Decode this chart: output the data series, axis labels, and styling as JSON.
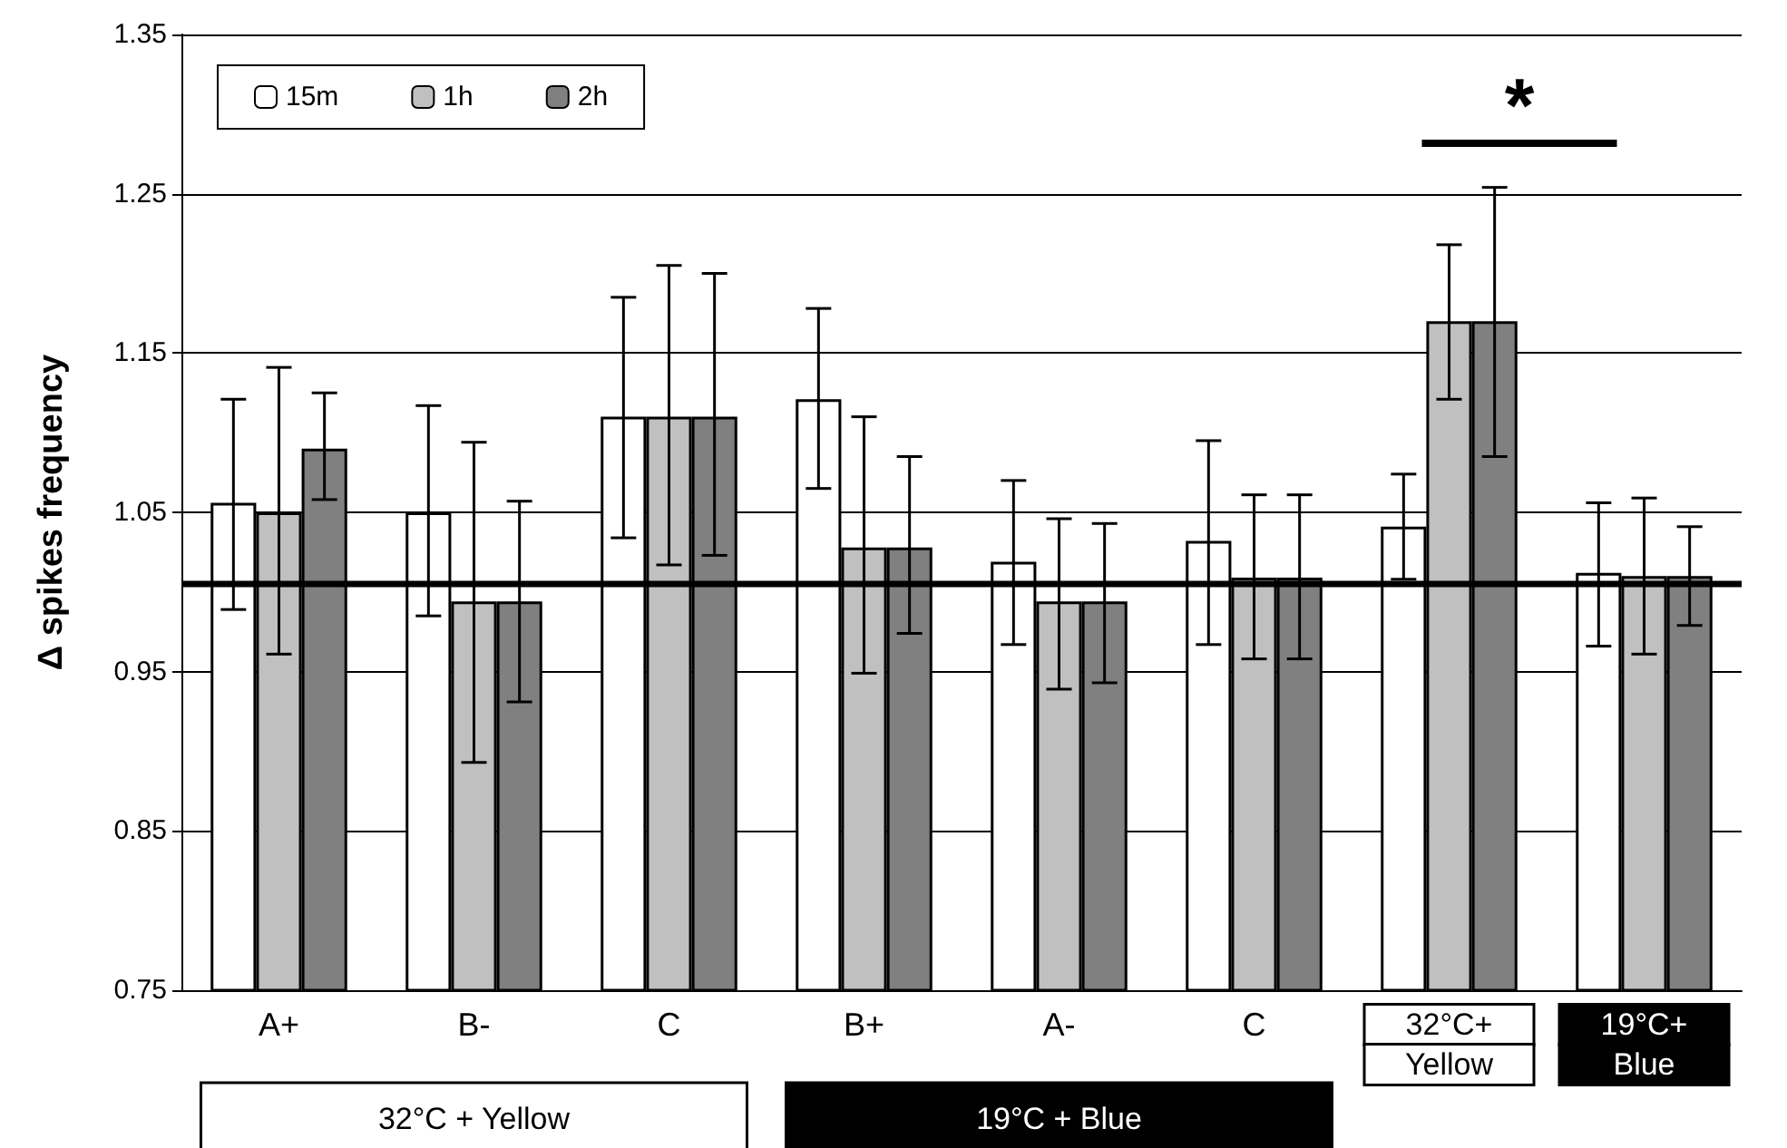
{
  "chart_data": {
    "type": "bar",
    "ylabel": "Δ spikes frequency",
    "categories": [
      "A+",
      "B-",
      "C",
      "B+",
      "A-",
      "C",
      "32°C+\nYellow",
      "19°C+\nBlue"
    ],
    "series": [
      {
        "name": "15m",
        "color": "#ffffff",
        "values": [
          1.056,
          1.05,
          1.11,
          1.121,
          1.019,
          1.032,
          1.041,
          1.012
        ],
        "errors": [
          [
            0.989,
            1.121
          ],
          [
            0.985,
            1.117
          ],
          [
            1.034,
            1.185
          ],
          [
            1.065,
            1.178
          ],
          [
            0.967,
            1.07
          ],
          [
            0.967,
            1.095
          ],
          [
            1.008,
            1.074
          ],
          [
            0.966,
            1.056
          ]
        ]
      },
      {
        "name": "1h",
        "color": "#c0c0c0",
        "values": [
          1.05,
          0.994,
          1.11,
          1.028,
          0.994,
          1.009,
          1.17,
          1.01
        ],
        "errors": [
          [
            0.961,
            1.141
          ],
          [
            0.893,
            1.094
          ],
          [
            1.017,
            1.205
          ],
          [
            0.949,
            1.11
          ],
          [
            0.939,
            1.046
          ],
          [
            0.958,
            1.061
          ],
          [
            1.121,
            1.218
          ],
          [
            0.961,
            1.059
          ]
        ]
      },
      {
        "name": "2h",
        "color": "#808080",
        "values": [
          1.09,
          0.994,
          1.11,
          1.028,
          0.994,
          1.009,
          1.17,
          1.01
        ],
        "errors": [
          [
            1.058,
            1.125
          ],
          [
            0.931,
            1.057
          ],
          [
            1.023,
            1.2
          ],
          [
            0.974,
            1.085
          ],
          [
            0.943,
            1.043
          ],
          [
            0.958,
            1.061
          ],
          [
            1.085,
            1.254
          ],
          [
            0.979,
            1.041
          ]
        ]
      }
    ],
    "ylim": [
      0.75,
      1.35
    ],
    "yticks": [
      0.75,
      0.85,
      0.95,
      1.05,
      1.15,
      1.25,
      1.35
    ],
    "ref_lines": [
      {
        "axis": "y",
        "value": 1.005,
        "color": "#000000"
      }
    ],
    "annotations": [
      "32°C + Yellow",
      "19°C + Blue",
      "*"
    ],
    "grid": "y",
    "legend": "top left"
  }
}
